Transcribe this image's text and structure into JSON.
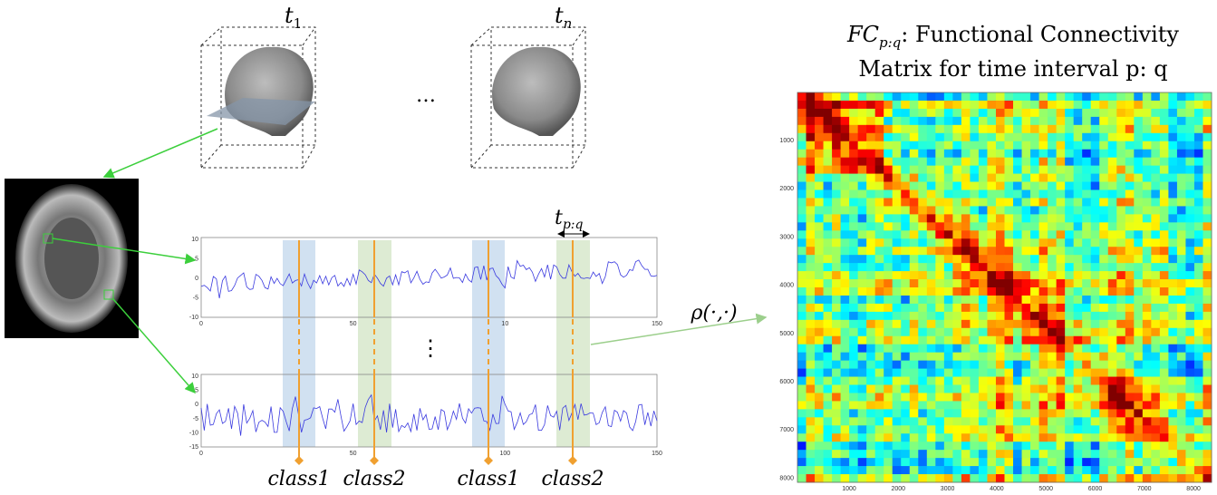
{
  "brains": {
    "first_label": "t",
    "first_sub": "1",
    "dots": "…",
    "last_label": "t",
    "last_sub": "n"
  },
  "interval": {
    "label": "t",
    "sub": "p:q"
  },
  "plots": [
    {
      "yticks": [
        "10",
        "5",
        "0",
        "-5",
        "-10"
      ],
      "xticks": [
        "0",
        "50",
        "10",
        "150"
      ]
    },
    {
      "yticks": [
        "10",
        "5",
        "0",
        "-5",
        "-10",
        "-15"
      ],
      "xticks": [
        "0",
        "50",
        "100",
        "150"
      ]
    }
  ],
  "vdots": "⋮",
  "classes": [
    "class1",
    "class2",
    "class1",
    "class2"
  ],
  "rho": "ρ(·,·)",
  "matrix": {
    "title_fc": "FC",
    "title_sub": "p:q",
    "title_rest": ": Functional Connectivity",
    "title_line2": "Matrix for time interval p: q",
    "yticks": [
      "1000",
      "2000",
      "3000",
      "4000",
      "5000",
      "6000",
      "7000",
      "8000"
    ],
    "xticks": [
      "1000",
      "2000",
      "3000",
      "4000",
      "5000",
      "6000",
      "7000",
      "8000"
    ]
  }
}
